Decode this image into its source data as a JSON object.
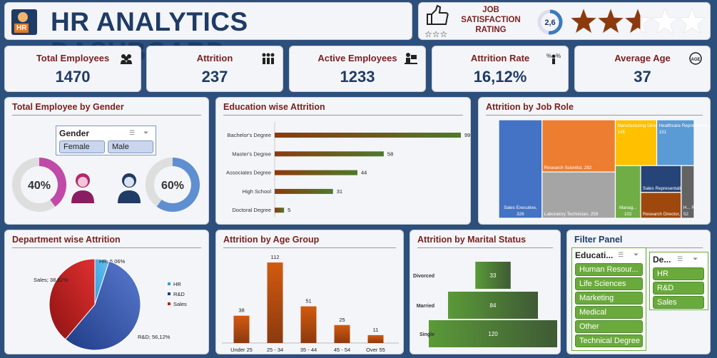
{
  "header": {
    "title": "HR ANALYTICS DASHBOARD",
    "logo_text": "HR"
  },
  "satisfaction": {
    "label_line1": "JOB",
    "label_line2": "SATISFACTION",
    "label_line3": "RATING",
    "value": "2,6",
    "stars": 2.6,
    "max_stars": 5,
    "icon": "thumbs-up-stars-icon"
  },
  "kpis": [
    {
      "label": "Total Employees",
      "value": "1470",
      "icon": "people-group-icon"
    },
    {
      "label": "Attrition",
      "value": "237",
      "icon": "people-leaving-icon"
    },
    {
      "label": "Active Employees",
      "value": "1233",
      "icon": "worker-desk-icon"
    },
    {
      "label": "Attrition Rate",
      "value": "16,12%",
      "icon": "percent-person-icon"
    },
    {
      "label": "Average Age",
      "value": "37",
      "icon": "age-badge-icon"
    }
  ],
  "gender": {
    "title": "Total Employee by Gender",
    "slicer_title": "Gender",
    "options": [
      "Female",
      "Male"
    ],
    "female_pct_label": "40%",
    "male_pct_label": "60%",
    "female_fraction": 0.4,
    "male_fraction": 0.6,
    "female_color": "#c04aa8",
    "male_color": "#5e8fd0"
  },
  "chart_data": [
    {
      "id": "education",
      "type": "bar",
      "orientation": "horizontal",
      "title": "Education wise Attrition",
      "categories": [
        "Bachelor's Degree",
        "Master's Degree",
        "Associates Degree",
        "High School",
        "Doctoral Degree"
      ],
      "values": [
        99,
        58,
        44,
        31,
        5
      ],
      "labels": [
        "99",
        "58",
        "44",
        "31",
        "5"
      ],
      "xlim": [
        0,
        110
      ]
    },
    {
      "id": "jobrole",
      "type": "treemap",
      "title": "Attrition by Job Role",
      "categories": [
        "Sales Executive",
        "Research Scientist",
        "Laboratory Technician",
        "Manufacturing Director",
        "Healthcare Representative",
        "Manager",
        "Sales Representative",
        "Research Director",
        "Human Resources"
      ],
      "values": [
        326,
        292,
        259,
        145,
        131,
        102,
        83,
        80,
        52
      ],
      "labels": [
        "Sales Executive, 326",
        "Research Scientist, 292",
        "Laboratory Technician, 259",
        "Manufacturing Director, 145",
        "Healthcare Representati..., 131",
        "Manag..., 102",
        "Sales Representative, 83",
        "Research Director, 80",
        "H... R..., 52"
      ],
      "colors": [
        "#4472c4",
        "#ed7d31",
        "#a5a5a5",
        "#ffc000",
        "#5b9bd5",
        "#70ad47",
        "#264478",
        "#9e480e",
        "#636363"
      ]
    },
    {
      "id": "department",
      "type": "pie",
      "title": "Department wise Attrition",
      "categories": [
        "HR",
        "R&D",
        "Sales"
      ],
      "values": [
        5.06,
        56.12,
        38.82
      ],
      "labels": [
        "HR; 5,06%",
        "R&D; 56,12%",
        "Sales; 38,82%"
      ],
      "legend": [
        "HR",
        "R&D",
        "Sales"
      ],
      "legend_position": "right",
      "colors": [
        "#2fa0e0",
        "#1f3c86",
        "#c0201c"
      ]
    },
    {
      "id": "age",
      "type": "bar",
      "title": "Attrition by Age Group",
      "categories": [
        "Under 25",
        "25 - 34",
        "35 - 44",
        "45 - 54",
        "Over 55"
      ],
      "values": [
        38,
        112,
        51,
        25,
        11
      ],
      "labels": [
        "38",
        "112",
        "51",
        "25",
        "11"
      ],
      "ylim": [
        0,
        120
      ]
    },
    {
      "id": "marital",
      "type": "bar",
      "orientation": "horizontal-funnel",
      "title": "Attrition by Marital Status",
      "categories": [
        "Divorced",
        "Married",
        "Single"
      ],
      "values": [
        33,
        84,
        120
      ],
      "labels": [
        "33",
        "84",
        "120"
      ]
    }
  ],
  "filters": {
    "title": "Filter Panel",
    "education": {
      "title": "Educati...",
      "options": [
        "Human Resour...",
        "Life Sciences",
        "Marketing",
        "Medical",
        "Other",
        "Technical Degree"
      ]
    },
    "department": {
      "title": "De...",
      "options": [
        "HR",
        "R&D",
        "Sales"
      ]
    }
  }
}
